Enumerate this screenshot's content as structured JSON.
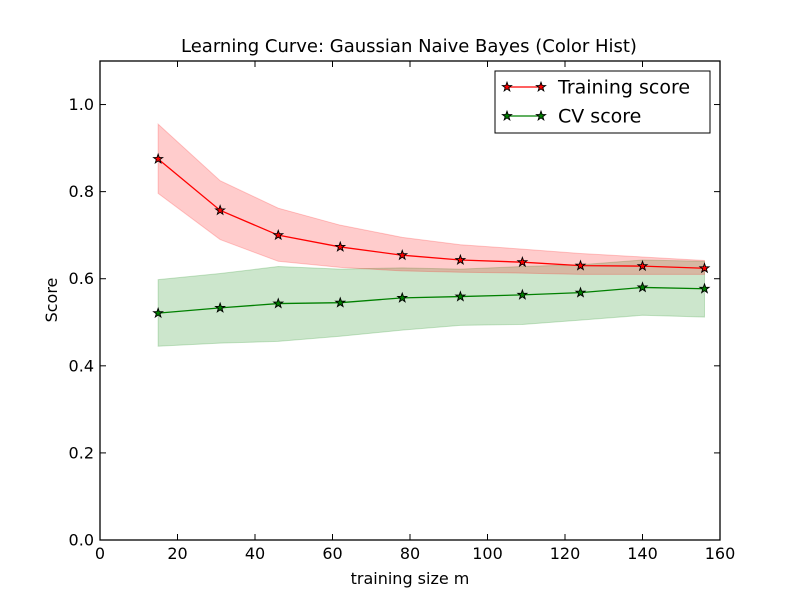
{
  "chart_data": {
    "type": "line",
    "title": "Learning Curve: Gaussian Naive Bayes (Color Hist)",
    "xlabel": "training size m",
    "ylabel": "Score",
    "xlim": [
      0,
      160
    ],
    "ylim": [
      0.0,
      1.1
    ],
    "xticks": [
      0,
      20,
      40,
      60,
      80,
      100,
      120,
      140,
      160
    ],
    "yticks": [
      0.0,
      0.2,
      0.4,
      0.6,
      0.8,
      1.0
    ],
    "xtick_labels": [
      "0",
      "20",
      "40",
      "60",
      "80",
      "100",
      "120",
      "140",
      "160"
    ],
    "ytick_labels": [
      "0.0",
      "0.2",
      "0.4",
      "0.6",
      "0.8",
      "1.0"
    ],
    "grid": false,
    "legend_position": "top-right",
    "x": [
      15,
      31,
      46,
      62,
      78,
      93,
      109,
      124,
      140,
      156
    ],
    "series": [
      {
        "name": "Training score",
        "color": "#ff0000",
        "band_color": "#ff0000",
        "marker": "star",
        "values": [
          0.875,
          0.757,
          0.7,
          0.673,
          0.654,
          0.643,
          0.638,
          0.63,
          0.629,
          0.624
        ],
        "lower": [
          0.796,
          0.69,
          0.64,
          0.626,
          0.618,
          0.615,
          0.613,
          0.61,
          0.61,
          0.61
        ],
        "upper": [
          0.955,
          0.825,
          0.762,
          0.723,
          0.695,
          0.678,
          0.668,
          0.658,
          0.65,
          0.642
        ]
      },
      {
        "name": "CV score",
        "color": "#008000",
        "band_color": "#008000",
        "marker": "star",
        "values": [
          0.521,
          0.533,
          0.543,
          0.545,
          0.556,
          0.559,
          0.563,
          0.568,
          0.58,
          0.577
        ],
        "lower": [
          0.445,
          0.452,
          0.456,
          0.468,
          0.482,
          0.493,
          0.495,
          0.505,
          0.516,
          0.512
        ],
        "upper": [
          0.598,
          0.612,
          0.628,
          0.622,
          0.625,
          0.622,
          0.628,
          0.632,
          0.643,
          0.64
        ]
      }
    ]
  }
}
